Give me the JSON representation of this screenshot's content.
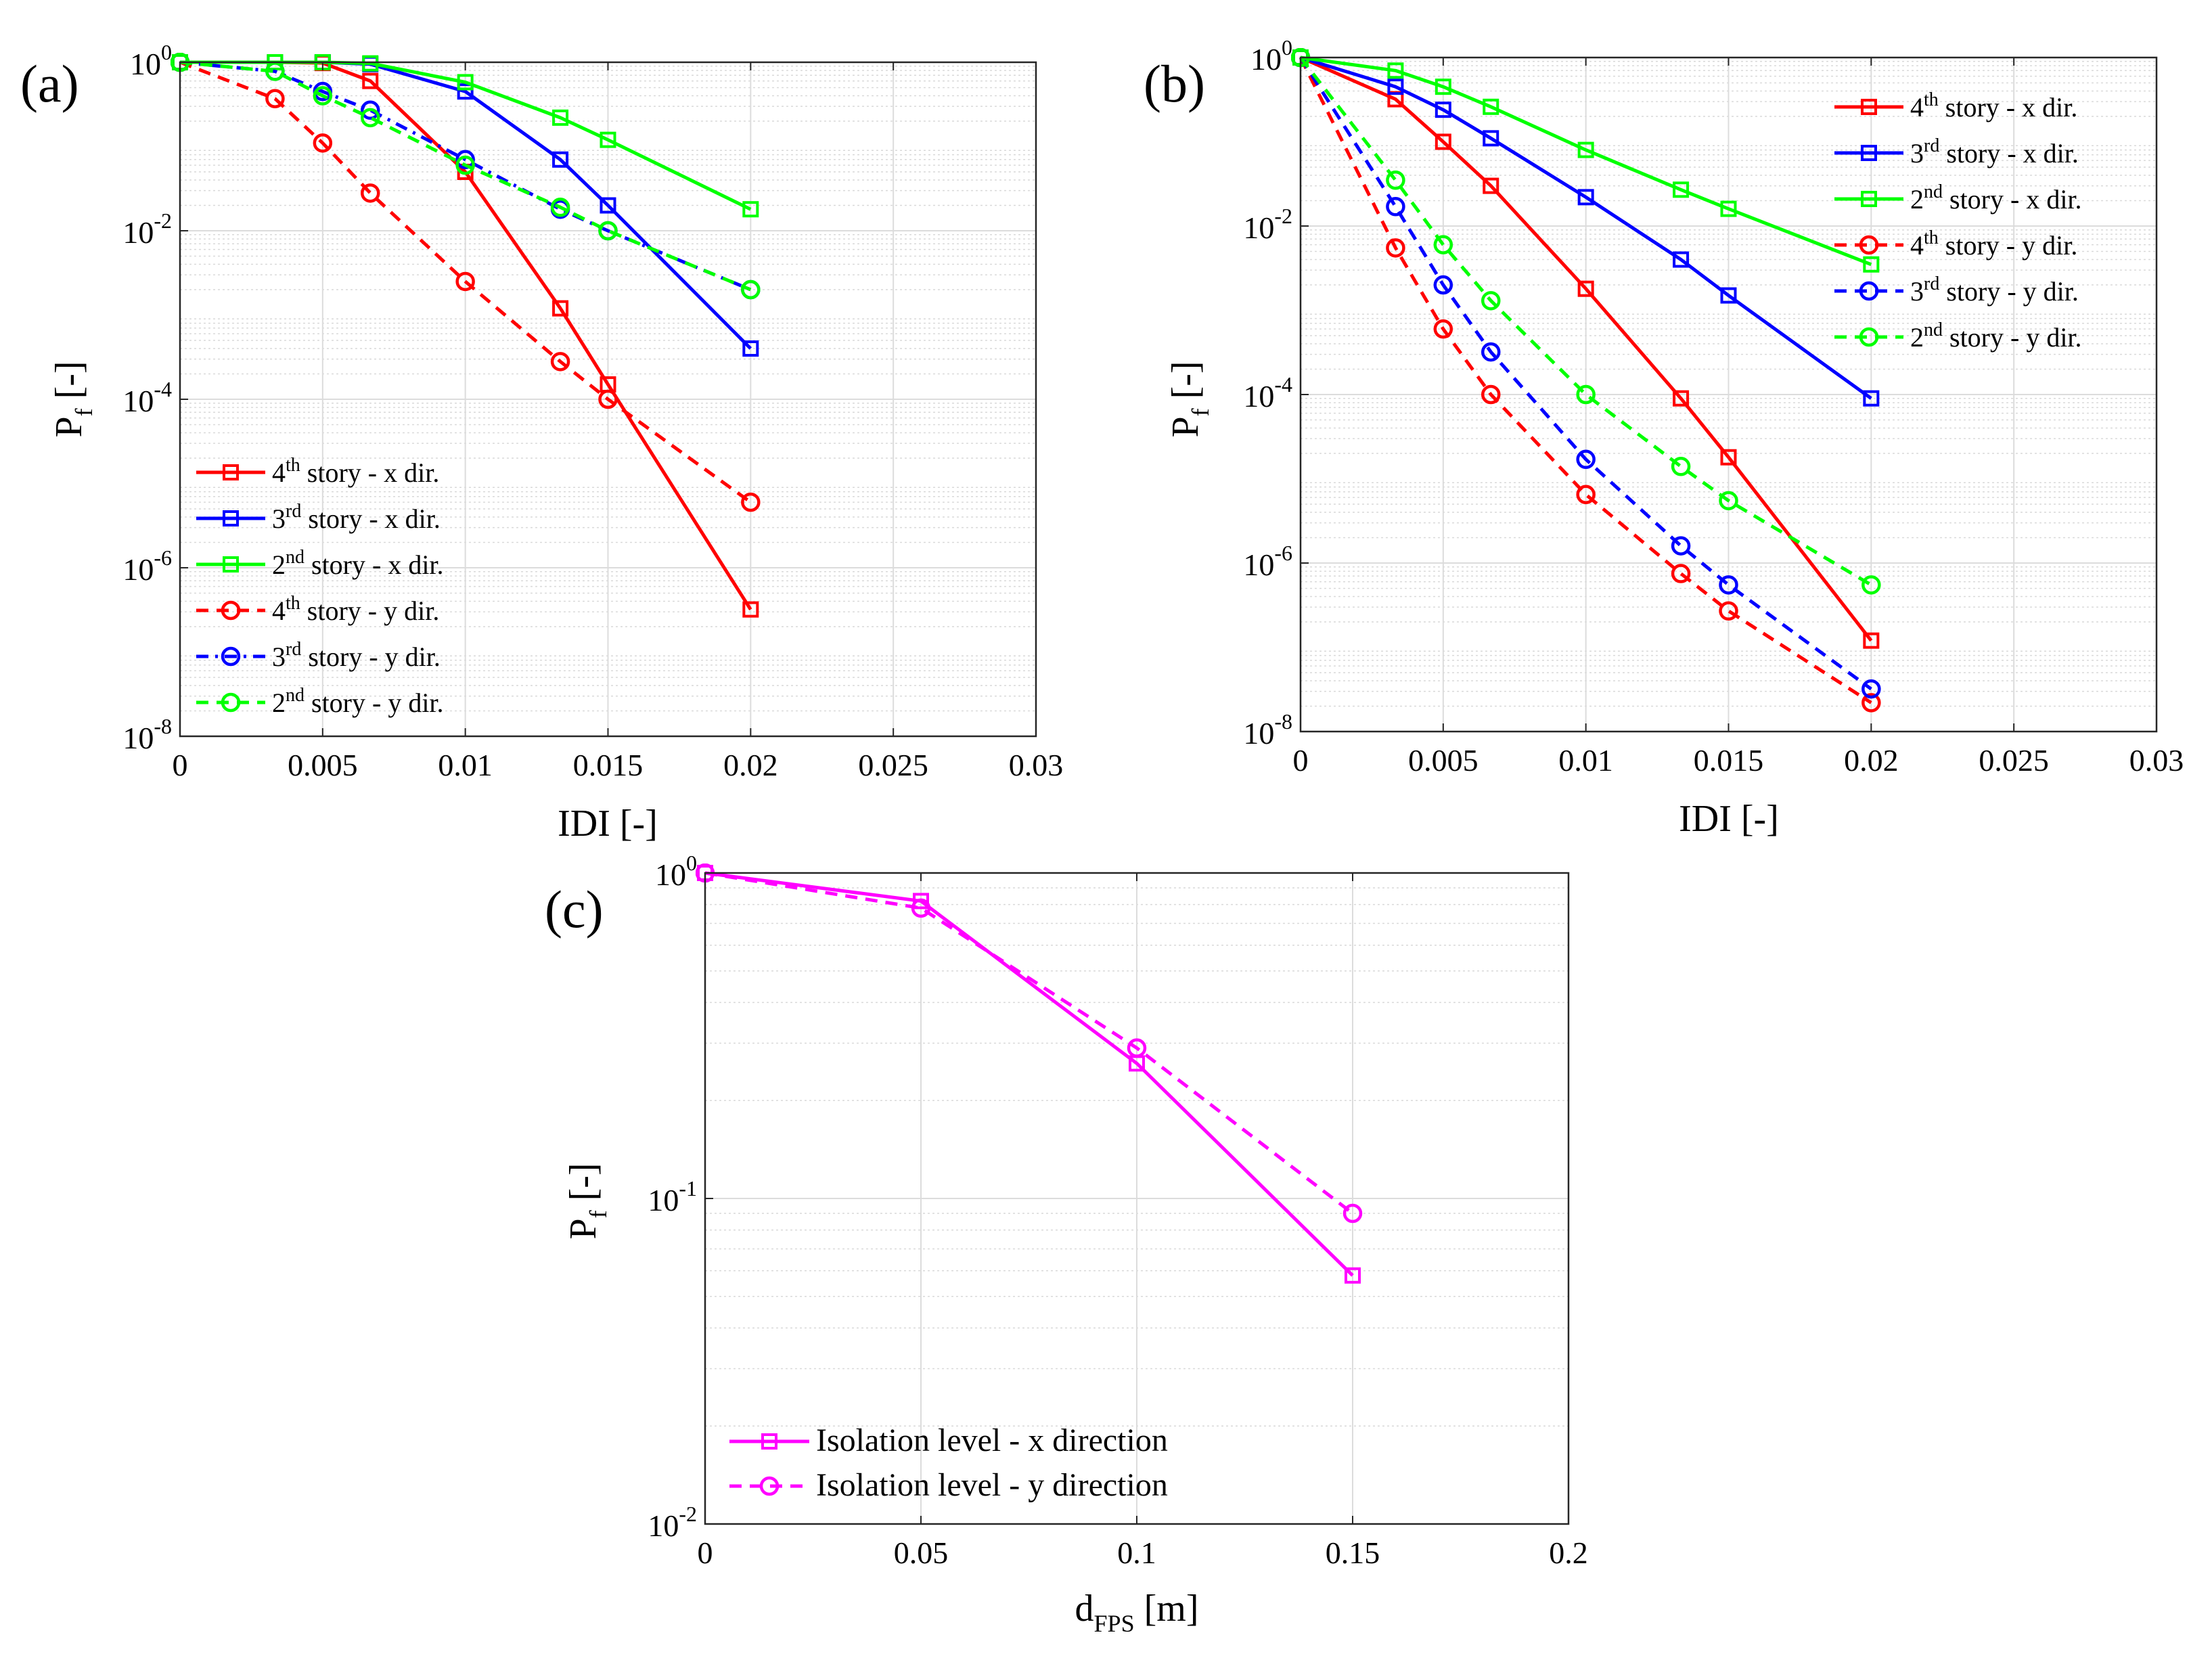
{
  "chart_data": [
    {
      "id": "a",
      "panel_label": "(a)",
      "type": "line",
      "y_scale": "log",
      "xlabel": "IDI [-]",
      "ylabel": {
        "main": "P",
        "sub": "f",
        "unit": " [-]"
      },
      "xlim": [
        0,
        0.03
      ],
      "ylim_exp": [
        -8,
        0
      ],
      "x_ticks": [
        {
          "v": 0,
          "label": "0"
        },
        {
          "v": 0.005,
          "label": "0.005"
        },
        {
          "v": 0.01,
          "label": "0.01"
        },
        {
          "v": 0.015,
          "label": "0.015"
        },
        {
          "v": 0.02,
          "label": "0.02"
        },
        {
          "v": 0.025,
          "label": "0.025"
        },
        {
          "v": 0.03,
          "label": "0.03"
        }
      ],
      "y_ticks": [
        {
          "exp": 0,
          "base": "10",
          "sup": "0"
        },
        {
          "exp": -2,
          "base": "10",
          "sup": "-2"
        },
        {
          "exp": -4,
          "base": "10",
          "sup": "-4"
        },
        {
          "exp": -6,
          "base": "10",
          "sup": "-6"
        },
        {
          "exp": -8,
          "base": "10",
          "sup": "-8"
        }
      ],
      "legend_position": "bottom-left",
      "series": [
        {
          "name": "4th story - x dir.",
          "ord": "4",
          "sup": "th",
          "rest": " story - x dir.",
          "color": "#ff0000",
          "dash": "solid",
          "marker": "square",
          "x": [
            0,
            0.00333,
            0.005,
            0.00667,
            0.01,
            0.01333,
            0.015,
            0.02
          ],
          "y": [
            1.0,
            1.0,
            0.98,
            0.6,
            0.05,
            0.0012,
            0.00015,
            3.2e-07
          ]
        },
        {
          "name": "3rd story - x dir.",
          "ord": "3",
          "sup": "rd",
          "rest": " story - x dir.",
          "color": "#0000ff",
          "dash": "solid",
          "marker": "square",
          "x": [
            0,
            0.00333,
            0.005,
            0.00667,
            0.01,
            0.01333,
            0.015,
            0.02
          ],
          "y": [
            1.0,
            1.0,
            1.0,
            0.95,
            0.45,
            0.07,
            0.02,
            0.0004
          ]
        },
        {
          "name": "2nd story - x dir.",
          "ord": "2",
          "sup": "nd",
          "rest": " story - x dir.",
          "color": "#00ff00",
          "dash": "solid",
          "marker": "square",
          "x": [
            0,
            0.00333,
            0.005,
            0.00667,
            0.01,
            0.01333,
            0.015,
            0.02
          ],
          "y": [
            1.0,
            1.0,
            1.0,
            0.97,
            0.58,
            0.22,
            0.12,
            0.018
          ]
        },
        {
          "name": "4th story - y dir.",
          "ord": "4",
          "sup": "th",
          "rest": " story - y dir.",
          "color": "#ff0000",
          "dash": "dashed",
          "marker": "circle",
          "x": [
            0,
            0.00333,
            0.005,
            0.00667,
            0.01,
            0.01333,
            0.015,
            0.02
          ],
          "y": [
            1.0,
            0.37,
            0.11,
            0.028,
            0.0025,
            0.00028,
            0.0001,
            6e-06
          ]
        },
        {
          "name": "3rd story - y dir.",
          "ord": "3",
          "sup": "rd",
          "rest": " story - y dir.",
          "color": "#0000ff",
          "dash": "dashdot",
          "marker": "circle",
          "x": [
            0,
            0.00333,
            0.005,
            0.00667,
            0.01,
            0.01333,
            0.015,
            0.02
          ],
          "y": [
            1.0,
            0.78,
            0.45,
            0.27,
            0.07,
            0.018,
            0.01,
            0.002
          ]
        },
        {
          "name": "2nd story - y dir.",
          "ord": "2",
          "sup": "nd",
          "rest": " story - y dir.",
          "color": "#00ff00",
          "dash": "dashed",
          "marker": "circle",
          "x": [
            0,
            0.00333,
            0.005,
            0.00667,
            0.01,
            0.01333,
            0.015,
            0.02
          ],
          "y": [
            1.0,
            0.78,
            0.4,
            0.22,
            0.06,
            0.019,
            0.01,
            0.002
          ]
        }
      ]
    },
    {
      "id": "b",
      "panel_label": "(b)",
      "type": "line",
      "y_scale": "log",
      "xlabel": "IDI [-]",
      "ylabel": {
        "main": "P",
        "sub": "f",
        "unit": " [-]"
      },
      "xlim": [
        0,
        0.03
      ],
      "ylim_exp": [
        -8,
        0
      ],
      "x_ticks": [
        {
          "v": 0,
          "label": "0"
        },
        {
          "v": 0.005,
          "label": "0.005"
        },
        {
          "v": 0.01,
          "label": "0.01"
        },
        {
          "v": 0.015,
          "label": "0.015"
        },
        {
          "v": 0.02,
          "label": "0.02"
        },
        {
          "v": 0.025,
          "label": "0.025"
        },
        {
          "v": 0.03,
          "label": "0.03"
        }
      ],
      "y_ticks": [
        {
          "exp": 0,
          "base": "10",
          "sup": "0"
        },
        {
          "exp": -2,
          "base": "10",
          "sup": "-2"
        },
        {
          "exp": -4,
          "base": "10",
          "sup": "-4"
        },
        {
          "exp": -6,
          "base": "10",
          "sup": "-6"
        },
        {
          "exp": -8,
          "base": "10",
          "sup": "-8"
        }
      ],
      "legend_position": "top-right",
      "series": [
        {
          "name": "4th story - x dir.",
          "ord": "4",
          "sup": "th",
          "rest": " story - x dir.",
          "color": "#ff0000",
          "dash": "solid",
          "marker": "square",
          "x": [
            0,
            0.00333,
            0.005,
            0.00667,
            0.01,
            0.01333,
            0.015,
            0.02
          ],
          "y": [
            1.0,
            0.32,
            0.1,
            0.03,
            0.0018,
            9e-05,
            1.8e-05,
            1.2e-07
          ]
        },
        {
          "name": "3rd story - x dir.",
          "ord": "3",
          "sup": "rd",
          "rest": " story - x dir.",
          "color": "#0000ff",
          "dash": "solid",
          "marker": "square",
          "x": [
            0,
            0.00333,
            0.005,
            0.00667,
            0.01,
            0.01333,
            0.015,
            0.02
          ],
          "y": [
            1.0,
            0.45,
            0.24,
            0.11,
            0.022,
            0.004,
            0.0015,
            9e-05
          ]
        },
        {
          "name": "2nd story - x dir.",
          "ord": "2",
          "sup": "nd",
          "rest": " story - x dir.",
          "color": "#00ff00",
          "dash": "solid",
          "marker": "square",
          "x": [
            0,
            0.00333,
            0.005,
            0.00667,
            0.01,
            0.01333,
            0.015,
            0.02
          ],
          "y": [
            1.0,
            0.7,
            0.45,
            0.26,
            0.08,
            0.027,
            0.016,
            0.0035
          ]
        },
        {
          "name": "4th story - y dir.",
          "ord": "4",
          "sup": "th",
          "rest": " story - y dir.",
          "color": "#ff0000",
          "dash": "dashed",
          "marker": "circle",
          "x": [
            0,
            0.00333,
            0.005,
            0.00667,
            0.01,
            0.01333,
            0.015,
            0.02
          ],
          "y": [
            1.0,
            0.0055,
            0.0006,
            0.0001,
            6.5e-06,
            7.5e-07,
            2.7e-07,
            2.2e-08
          ]
        },
        {
          "name": "3rd story - y dir.",
          "ord": "3",
          "sup": "rd",
          "rest": " story - y dir.",
          "color": "#0000ff",
          "dash": "dashed",
          "marker": "circle",
          "x": [
            0,
            0.00333,
            0.005,
            0.00667,
            0.01,
            0.01333,
            0.015,
            0.02
          ],
          "y": [
            1.0,
            0.017,
            0.002,
            0.00032,
            1.7e-05,
            1.6e-06,
            5.5e-07,
            3.2e-08
          ]
        },
        {
          "name": "2nd story - y dir.",
          "ord": "2",
          "sup": "nd",
          "rest": " story - y dir.",
          "color": "#00ff00",
          "dash": "dashed",
          "marker": "circle",
          "x": [
            0,
            0.00333,
            0.005,
            0.00667,
            0.01,
            0.01333,
            0.015,
            0.02
          ],
          "y": [
            1.0,
            0.035,
            0.006,
            0.0013,
            0.0001,
            1.4e-05,
            5.5e-06,
            5.5e-07
          ]
        }
      ]
    },
    {
      "id": "c",
      "panel_label": "(c)",
      "type": "line",
      "y_scale": "log",
      "xlabel": {
        "main": "d",
        "sub": "FPS",
        "unit": " [m]"
      },
      "ylabel": {
        "main": "P",
        "sub": "f",
        "unit": " [-]"
      },
      "xlim": [
        0,
        0.2
      ],
      "ylim_exp": [
        -2,
        0
      ],
      "x_ticks": [
        {
          "v": 0,
          "label": "0"
        },
        {
          "v": 0.05,
          "label": "0.05"
        },
        {
          "v": 0.1,
          "label": "0.1"
        },
        {
          "v": 0.15,
          "label": "0.15"
        },
        {
          "v": 0.2,
          "label": "0.2"
        }
      ],
      "y_ticks": [
        {
          "exp": 0,
          "base": "10",
          "sup": "0"
        },
        {
          "exp": -1,
          "base": "10",
          "sup": "-1"
        },
        {
          "exp": -2,
          "base": "10",
          "sup": "-2"
        }
      ],
      "legend_position": "bottom-left",
      "series": [
        {
          "name": "Isolation level - x direction",
          "label": "Isolation level - x direction",
          "color": "#ff00ff",
          "dash": "solid",
          "marker": "square",
          "x": [
            0,
            0.05,
            0.1,
            0.15
          ],
          "y": [
            1.0,
            0.82,
            0.26,
            0.058
          ]
        },
        {
          "name": "Isolation level - y direction",
          "label": "Isolation level - y direction",
          "color": "#ff00ff",
          "dash": "dashed",
          "marker": "circle",
          "x": [
            0,
            0.05,
            0.1,
            0.15
          ],
          "y": [
            1.0,
            0.78,
            0.29,
            0.09
          ]
        }
      ]
    }
  ]
}
